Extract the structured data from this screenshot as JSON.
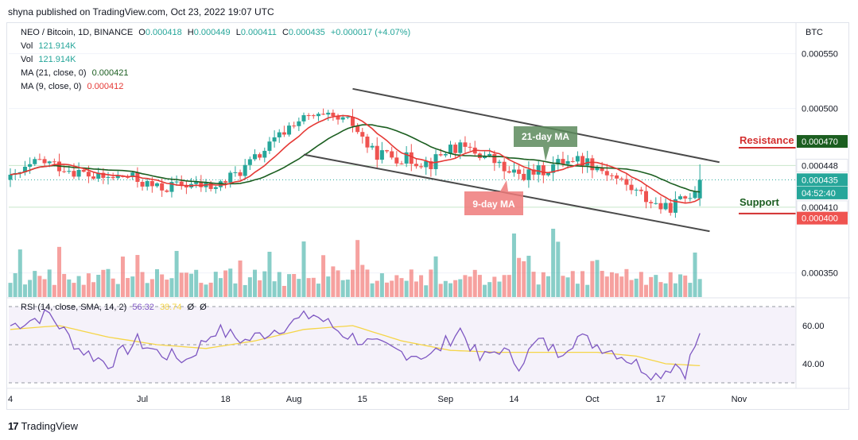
{
  "publisher": "shyna published on TradingView.com, Oct 23, 2022 19:07 UTC",
  "footer": "TradingView",
  "legend": {
    "symbol": "NEO / Bitcoin, 1D, BINANCE",
    "o_label": "O",
    "o": "0.000418",
    "h_label": "H",
    "h": "0.000449",
    "l_label": "L",
    "l": "0.000411",
    "c_label": "C",
    "c": "0.000435",
    "change": "+0.000017 (+4.07%)",
    "vol1_label": "Vol",
    "vol1": "121.914K",
    "vol2_label": "Vol",
    "vol2": "121.914K",
    "ma21_label": "MA (21, close, 0)",
    "ma21": "0.000421",
    "ma9_label": "MA (9, close, 0)",
    "ma9": "0.000412"
  },
  "rsi_legend": {
    "label": "RSI (14, close, SMA, 14, 2)",
    "rsi": "56.32",
    "sma": "38.74",
    "extra1": "Ø",
    "extra2": "Ø"
  },
  "currency": "BTC",
  "colors": {
    "up": "#26a69a",
    "down": "#ef5350",
    "ma21": "#1b5e20",
    "ma9": "#e53935",
    "rsi": "#7e57c2",
    "rsi_sma": "#f5d547",
    "resistance": "#d32f2f",
    "support": "#1b5e20"
  },
  "annotations": {
    "ma21_label": "21-day MA",
    "ma9_label": "9-day MA",
    "resistance": "Resistance",
    "support": "Support"
  },
  "chart_data": {
    "type": "candlestick",
    "price_axis": {
      "range": [
        0.000328,
        0.000578
      ],
      "ticks": [
        "0.000550",
        "0.000500",
        "0.000350"
      ]
    },
    "price_labels": [
      {
        "value": 0.00047,
        "text": "0.000470",
        "color": "#1b5e20",
        "filled": true
      },
      {
        "value": 0.000448,
        "text": "0.000448",
        "color": "#ffffff",
        "filled": false
      },
      {
        "value": 0.000435,
        "text": "0.000435",
        "color": "#26a69a",
        "filled": true
      },
      {
        "value": 0.000423,
        "text": "04:52:40",
        "color": "#26a69a",
        "filled": true
      },
      {
        "value": 0.00041,
        "text": "0.000410",
        "color": "#ffffff",
        "filled": false
      },
      {
        "value": 0.0004,
        "text": "0.000400",
        "color": "#ef5350",
        "filled": true
      }
    ],
    "x_ticks": [
      {
        "index": 0,
        "label": "4"
      },
      {
        "index": 27,
        "label": "Jul"
      },
      {
        "index": 44,
        "label": "18"
      },
      {
        "index": 58,
        "label": "Aug"
      },
      {
        "index": 72,
        "label": "15"
      },
      {
        "index": 89,
        "label": "Sep"
      },
      {
        "index": 103,
        "label": "14"
      },
      {
        "index": 119,
        "label": "Oct"
      },
      {
        "index": 133,
        "label": "17"
      },
      {
        "index": 149,
        "label": "Nov"
      }
    ],
    "keypoints": [
      [
        0,
        0.000435
      ],
      [
        6,
        0.000452
      ],
      [
        12,
        0.000445
      ],
      [
        18,
        0.000436
      ],
      [
        24,
        0.000438
      ],
      [
        30,
        0.000427
      ],
      [
        36,
        0.000431
      ],
      [
        42,
        0.000428
      ],
      [
        48,
        0.000446
      ],
      [
        54,
        0.00047
      ],
      [
        58,
        0.000488
      ],
      [
        62,
        0.000492
      ],
      [
        66,
        0.00049
      ],
      [
        70,
        0.000486
      ],
      [
        74,
        0.00046
      ],
      [
        80,
        0.000455
      ],
      [
        86,
        0.00045
      ],
      [
        90,
        0.000465
      ],
      [
        94,
        0.000462
      ],
      [
        98,
        0.000455
      ],
      [
        102,
        0.00044
      ],
      [
        106,
        0.00044
      ],
      [
        110,
        0.000445
      ],
      [
        114,
        0.000455
      ],
      [
        118,
        0.000452
      ],
      [
        122,
        0.000442
      ],
      [
        126,
        0.00043
      ],
      [
        130,
        0.000418
      ],
      [
        134,
        0.000408
      ],
      [
        138,
        0.000418
      ],
      [
        141,
        0.000432
      ]
    ],
    "candle_count": 142,
    "last_candle": {
      "open": 0.000418,
      "high": 0.000449,
      "low": 0.000411,
      "close": 0.000435
    },
    "channel": {
      "upper": [
        [
          70,
          0.000518
        ],
        [
          145,
          0.000451
        ]
      ],
      "lower": [
        [
          60,
          0.000458
        ],
        [
          143,
          0.000388
        ]
      ]
    },
    "support_level": 0.00041,
    "resistance_level": 0.00047,
    "rsi": {
      "range": [
        30,
        70
      ],
      "ticks": [
        "60.00",
        "40.00"
      ],
      "keypoints": [
        [
          0,
          60
        ],
        [
          8,
          66
        ],
        [
          14,
          48
        ],
        [
          20,
          40
        ],
        [
          26,
          52
        ],
        [
          30,
          46
        ],
        [
          36,
          42
        ],
        [
          42,
          58
        ],
        [
          48,
          52
        ],
        [
          56,
          60
        ],
        [
          62,
          66
        ],
        [
          68,
          56
        ],
        [
          74,
          50
        ],
        [
          80,
          46
        ],
        [
          86,
          44
        ],
        [
          92,
          58
        ],
        [
          96,
          42
        ],
        [
          100,
          48
        ],
        [
          104,
          40
        ],
        [
          108,
          52
        ],
        [
          112,
          46
        ],
        [
          116,
          54
        ],
        [
          120,
          50
        ],
        [
          124,
          46
        ],
        [
          128,
          40
        ],
        [
          132,
          34
        ],
        [
          136,
          40
        ],
        [
          138,
          36
        ],
        [
          141,
          56
        ]
      ],
      "sma_keypoints": [
        [
          0,
          58
        ],
        [
          10,
          60
        ],
        [
          20,
          54
        ],
        [
          30,
          50
        ],
        [
          40,
          48
        ],
        [
          50,
          52
        ],
        [
          60,
          58
        ],
        [
          70,
          60
        ],
        [
          80,
          52
        ],
        [
          90,
          47
        ],
        [
          100,
          46
        ],
        [
          110,
          46
        ],
        [
          120,
          46
        ],
        [
          128,
          44
        ],
        [
          134,
          40
        ],
        [
          141,
          39
        ]
      ]
    }
  }
}
